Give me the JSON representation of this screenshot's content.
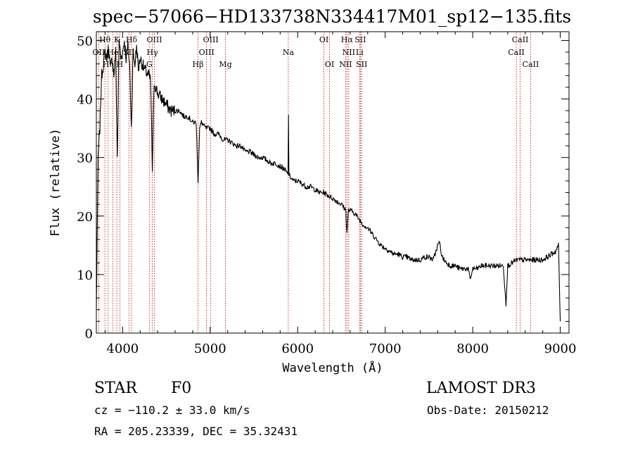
{
  "chart_data": {
    "type": "line",
    "title": "spec−57066−HD133738N334417M01_sp12−135.fits",
    "xlabel": "Wavelength (Å)",
    "ylabel": "Flux (relative)",
    "xlim": [
      3700,
      9100
    ],
    "ylim": [
      0,
      51.5
    ],
    "xticks": [
      4000,
      5000,
      6000,
      7000,
      8000,
      9000
    ],
    "xtick_labels": [
      "4000",
      "5000",
      "6000",
      "7000",
      "8000",
      "9000"
    ],
    "yticks": [
      0,
      10,
      20,
      30,
      40,
      50
    ],
    "ytick_labels": [
      "0",
      "10",
      "20",
      "30",
      "40",
      "50"
    ],
    "series": [
      {
        "name": "spectrum",
        "x": [
          3700,
          3720,
          3740,
          3760,
          3780,
          3800,
          3820,
          3840,
          3860,
          3880,
          3900,
          3920,
          3940,
          3960,
          3980,
          4000,
          4020,
          4040,
          4060,
          4080,
          4100,
          4120,
          4140,
          4160,
          4180,
          4200,
          4250,
          4300,
          4320,
          4340,
          4360,
          4380,
          4400,
          4450,
          4500,
          4550,
          4600,
          4650,
          4700,
          4750,
          4800,
          4840,
          4862,
          4880,
          4900,
          4950,
          5000,
          5050,
          5100,
          5150,
          5200,
          5250,
          5300,
          5350,
          5400,
          5450,
          5500,
          5550,
          5600,
          5650,
          5700,
          5750,
          5800,
          5850,
          5890,
          5895,
          5900,
          5950,
          6000,
          6050,
          6100,
          6150,
          6200,
          6250,
          6300,
          6350,
          6400,
          6450,
          6500,
          6550,
          6563,
          6580,
          6600,
          6650,
          6700,
          6750,
          6800,
          6850,
          6900,
          6950,
          7000,
          7050,
          7100,
          7150,
          7200,
          7250,
          7300,
          7350,
          7400,
          7450,
          7500,
          7550,
          7600,
          7620,
          7650,
          7700,
          7750,
          7800,
          7850,
          7900,
          7950,
          7970,
          8000,
          8050,
          8100,
          8150,
          8200,
          8250,
          8300,
          8350,
          8380,
          8400,
          8450,
          8500,
          8550,
          8600,
          8650,
          8700,
          8750,
          8800,
          8850,
          8900,
          8950,
          8980,
          9000
        ],
        "y": [
          4,
          30,
          35,
          44,
          46,
          48,
          47,
          49,
          45,
          47,
          44,
          48,
          30,
          50,
          47,
          48,
          50,
          47,
          49,
          46,
          35,
          48,
          46,
          49,
          45,
          47,
          45,
          44,
          43,
          28,
          43,
          42,
          41,
          40,
          39,
          38,
          38,
          38,
          37,
          37,
          36,
          36,
          26,
          35,
          36,
          35,
          35,
          34,
          34,
          33,
          33,
          32.5,
          32,
          32,
          31,
          31,
          30.5,
          30,
          30,
          29.5,
          29,
          29,
          28.5,
          28,
          27,
          37,
          27,
          26,
          26,
          25.5,
          25,
          25,
          24.5,
          24,
          24,
          23.5,
          23,
          22.5,
          22,
          21,
          17,
          21,
          21,
          20.5,
          19.5,
          18.5,
          18,
          17,
          16,
          15,
          14.5,
          14,
          13.5,
          13.5,
          13,
          13,
          12.5,
          12.5,
          12.5,
          13,
          13,
          12.5,
          15,
          15.5,
          13,
          12,
          11.5,
          11.5,
          11,
          11,
          11,
          9,
          11,
          11,
          11.5,
          11.5,
          11.5,
          11.5,
          11.5,
          11.5,
          5,
          11.5,
          12,
          12.5,
          12.5,
          12.5,
          12.5,
          12.5,
          12.5,
          12.5,
          13,
          13.5,
          14,
          15,
          2
        ]
      }
    ],
    "line_marks": [
      {
        "label": "Hθ",
        "x": 3798,
        "row": 1
      },
      {
        "label": "K",
        "x": 3934,
        "row": 1
      },
      {
        "label": "Hδ",
        "x": 4102,
        "row": 1
      },
      {
        "label": "OIII",
        "x": 4363,
        "row": 1
      },
      {
        "label": "OIII",
        "x": 5007,
        "row": 1
      },
      {
        "label": "OI",
        "x": 6300,
        "row": 1
      },
      {
        "label": "Hα",
        "x": 6563,
        "row": 1
      },
      {
        "label": "SII",
        "x": 6716,
        "row": 1
      },
      {
        "label": "CaII",
        "x": 8542,
        "row": 1
      },
      {
        "label": "OII",
        "x": 3727,
        "row": 2
      },
      {
        "label": "He",
        "x": 3889,
        "row": 2
      },
      {
        "label": "SII",
        "x": 4072,
        "row": 2
      },
      {
        "label": "Hγ",
        "x": 4340,
        "row": 2
      },
      {
        "label": "OIII",
        "x": 4959,
        "row": 2
      },
      {
        "label": "Na",
        "x": 5893,
        "row": 2
      },
      {
        "label": "NII",
        "x": 6583,
        "row": 2
      },
      {
        "label": "Li",
        "x": 6708,
        "row": 2
      },
      {
        "label": "CaII",
        "x": 8498,
        "row": 2
      },
      {
        "label": "Hη",
        "x": 3835,
        "row": 3
      },
      {
        "label": "H",
        "x": 3969,
        "row": 3
      },
      {
        "label": "G",
        "x": 4305,
        "row": 3
      },
      {
        "label": "Hβ",
        "x": 4861,
        "row": 3
      },
      {
        "label": "Mg",
        "x": 5175,
        "row": 3
      },
      {
        "label": "OI",
        "x": 6364,
        "row": 3
      },
      {
        "label": "NII",
        "x": 6548,
        "row": 3
      },
      {
        "label": "SII",
        "x": 6731,
        "row": 3
      },
      {
        "label": "CaII",
        "x": 8662,
        "row": 3
      }
    ]
  },
  "info": {
    "object_class": "STAR",
    "subclass": "F0",
    "survey": "LAMOST DR3",
    "cz": "cz = −110.2 ± 33.0 km/s",
    "obs_date": "Obs-Date: 20150212",
    "coords": "RA = 205.23339, DEC =  35.32431"
  }
}
